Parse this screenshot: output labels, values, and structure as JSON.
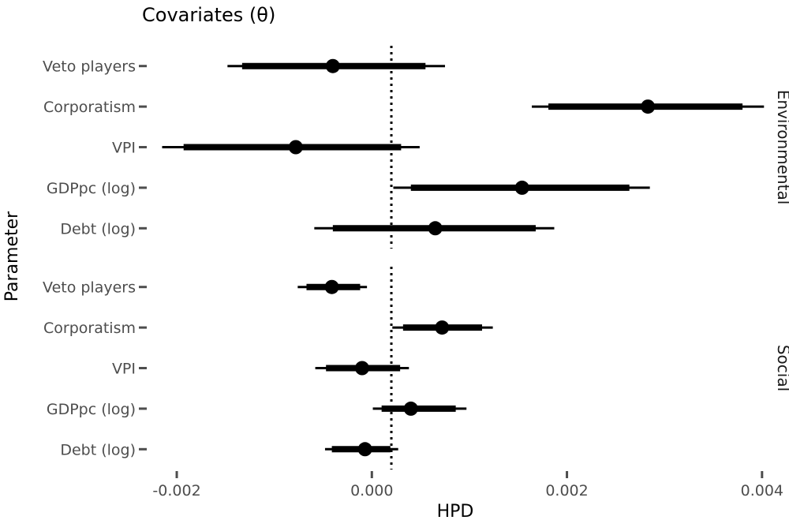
{
  "chart_data": {
    "type": "interval",
    "title": "Covariates (θ)",
    "xlabel": "HPD",
    "ylabel": "Parameter",
    "xlim": [
      -0.00234,
      0.00405
    ],
    "xticks": [
      -0.002,
      0.0,
      0.002,
      0.004
    ],
    "xtick_labels": [
      "-0.002",
      "0.000",
      "0.002",
      "0.004"
    ],
    "reference_line": {
      "x": 0.0002,
      "style": "dotted"
    },
    "colors": {
      "marks": "#000000",
      "ticks": "#4d4d4d"
    },
    "panels": [
      {
        "name": "Environmental",
        "rows": [
          {
            "label": "Veto players",
            "median": -0.0004,
            "inner": [
              -0.00133,
              0.00055
            ],
            "outer": [
              -0.00148,
              0.00075
            ]
          },
          {
            "label": "Corporatism",
            "median": 0.00283,
            "inner": [
              0.00181,
              0.0038
            ],
            "outer": [
              0.00164,
              0.00402
            ]
          },
          {
            "label": "VPI",
            "median": -0.00078,
            "inner": [
              -0.00193,
              0.0003
            ],
            "outer": [
              -0.00215,
              0.00049
            ]
          },
          {
            "label": "GDPpc (log)",
            "median": 0.00154,
            "inner": [
              0.0004,
              0.00264
            ],
            "outer": [
              0.00022,
              0.00285
            ]
          },
          {
            "label": "Debt (log)",
            "median": 0.00065,
            "inner": [
              -0.0004,
              0.00168
            ],
            "outer": [
              -0.00059,
              0.00187
            ]
          }
        ]
      },
      {
        "name": "Social",
        "rows": [
          {
            "label": "Veto players",
            "median": -0.00041,
            "inner": [
              -0.00067,
              -0.00012
            ],
            "outer": [
              -0.00076,
              -5e-05
            ]
          },
          {
            "label": "Corporatism",
            "median": 0.00072,
            "inner": [
              0.00032,
              0.00113
            ],
            "outer": [
              0.00021,
              0.00124
            ]
          },
          {
            "label": "VPI",
            "median": -0.0001,
            "inner": [
              -0.00047,
              0.00029
            ],
            "outer": [
              -0.00058,
              0.00038
            ]
          },
          {
            "label": "GDPpc (log)",
            "median": 0.0004,
            "inner": [
              0.0001,
              0.00086
            ],
            "outer": [
              1e-05,
              0.00097
            ]
          },
          {
            "label": "Debt (log)",
            "median": -7e-05,
            "inner": [
              -0.00041,
              0.00019
            ],
            "outer": [
              -0.00048,
              0.00027
            ]
          }
        ]
      }
    ]
  }
}
